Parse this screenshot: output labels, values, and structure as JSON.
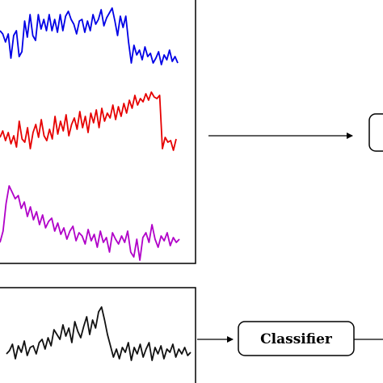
{
  "colors": {
    "blue": "#0000e6",
    "red": "#e60000",
    "magenta": "#b000c8",
    "black": "#111111",
    "frame": "#000000"
  },
  "signals": {
    "blue": [
      38,
      42,
      52,
      42,
      72,
      44,
      38,
      70,
      64,
      26,
      46,
      18,
      44,
      50,
      18,
      36,
      24,
      38,
      18,
      38,
      24,
      40,
      18,
      38,
      20,
      14,
      24,
      30,
      42,
      26,
      24,
      40,
      26,
      38,
      18,
      30,
      24,
      12,
      32,
      22,
      16,
      10,
      26,
      44,
      20,
      34,
      20,
      52,
      78,
      56,
      68,
      62,
      74,
      58,
      70,
      66,
      78,
      72,
      64,
      80,
      68,
      74,
      62,
      76,
      70,
      78
    ],
    "red": [
      170,
      162,
      174,
      164,
      178,
      168,
      182,
      150,
      172,
      176,
      158,
      184,
      164,
      154,
      170,
      148,
      168,
      174,
      160,
      172,
      144,
      166,
      150,
      162,
      142,
      168,
      154,
      146,
      160,
      138,
      158,
      144,
      164,
      140,
      152,
      136,
      158,
      134,
      150,
      140,
      146,
      130,
      148,
      132,
      144,
      128,
      140,
      124,
      134,
      118,
      130,
      122,
      126,
      116,
      124,
      114,
      120,
      122,
      118,
      184,
      170,
      176,
      174,
      186,
      172
    ],
    "magenta": [
      300,
      286,
      252,
      230,
      238,
      246,
      242,
      258,
      250,
      268,
      256,
      272,
      262,
      278,
      266,
      282,
      274,
      270,
      286,
      276,
      290,
      282,
      296,
      286,
      280,
      298,
      288,
      292,
      302,
      284,
      298,
      290,
      306,
      286,
      300,
      294,
      312,
      288,
      296,
      302,
      292,
      300,
      286,
      312,
      318,
      296,
      322,
      294,
      288,
      300,
      278,
      296,
      306,
      292,
      298,
      288,
      304,
      294,
      300,
      296
    ],
    "black": [
      438,
      434,
      426,
      444,
      428,
      436,
      422,
      440,
      430,
      428,
      438,
      424,
      420,
      432,
      418,
      428,
      408,
      414,
      420,
      402,
      416,
      406,
      424,
      398,
      410,
      418,
      404,
      392,
      414,
      396,
      406,
      386,
      380,
      396,
      414,
      428,
      442,
      432,
      444,
      430,
      436,
      424,
      446,
      430,
      438,
      426,
      442,
      432,
      424,
      446,
      430,
      438,
      428,
      444,
      432,
      436,
      426,
      442,
      432,
      438,
      430,
      440,
      436
    ]
  },
  "nodes": {
    "classifier": {
      "label": "Classifier"
    }
  }
}
